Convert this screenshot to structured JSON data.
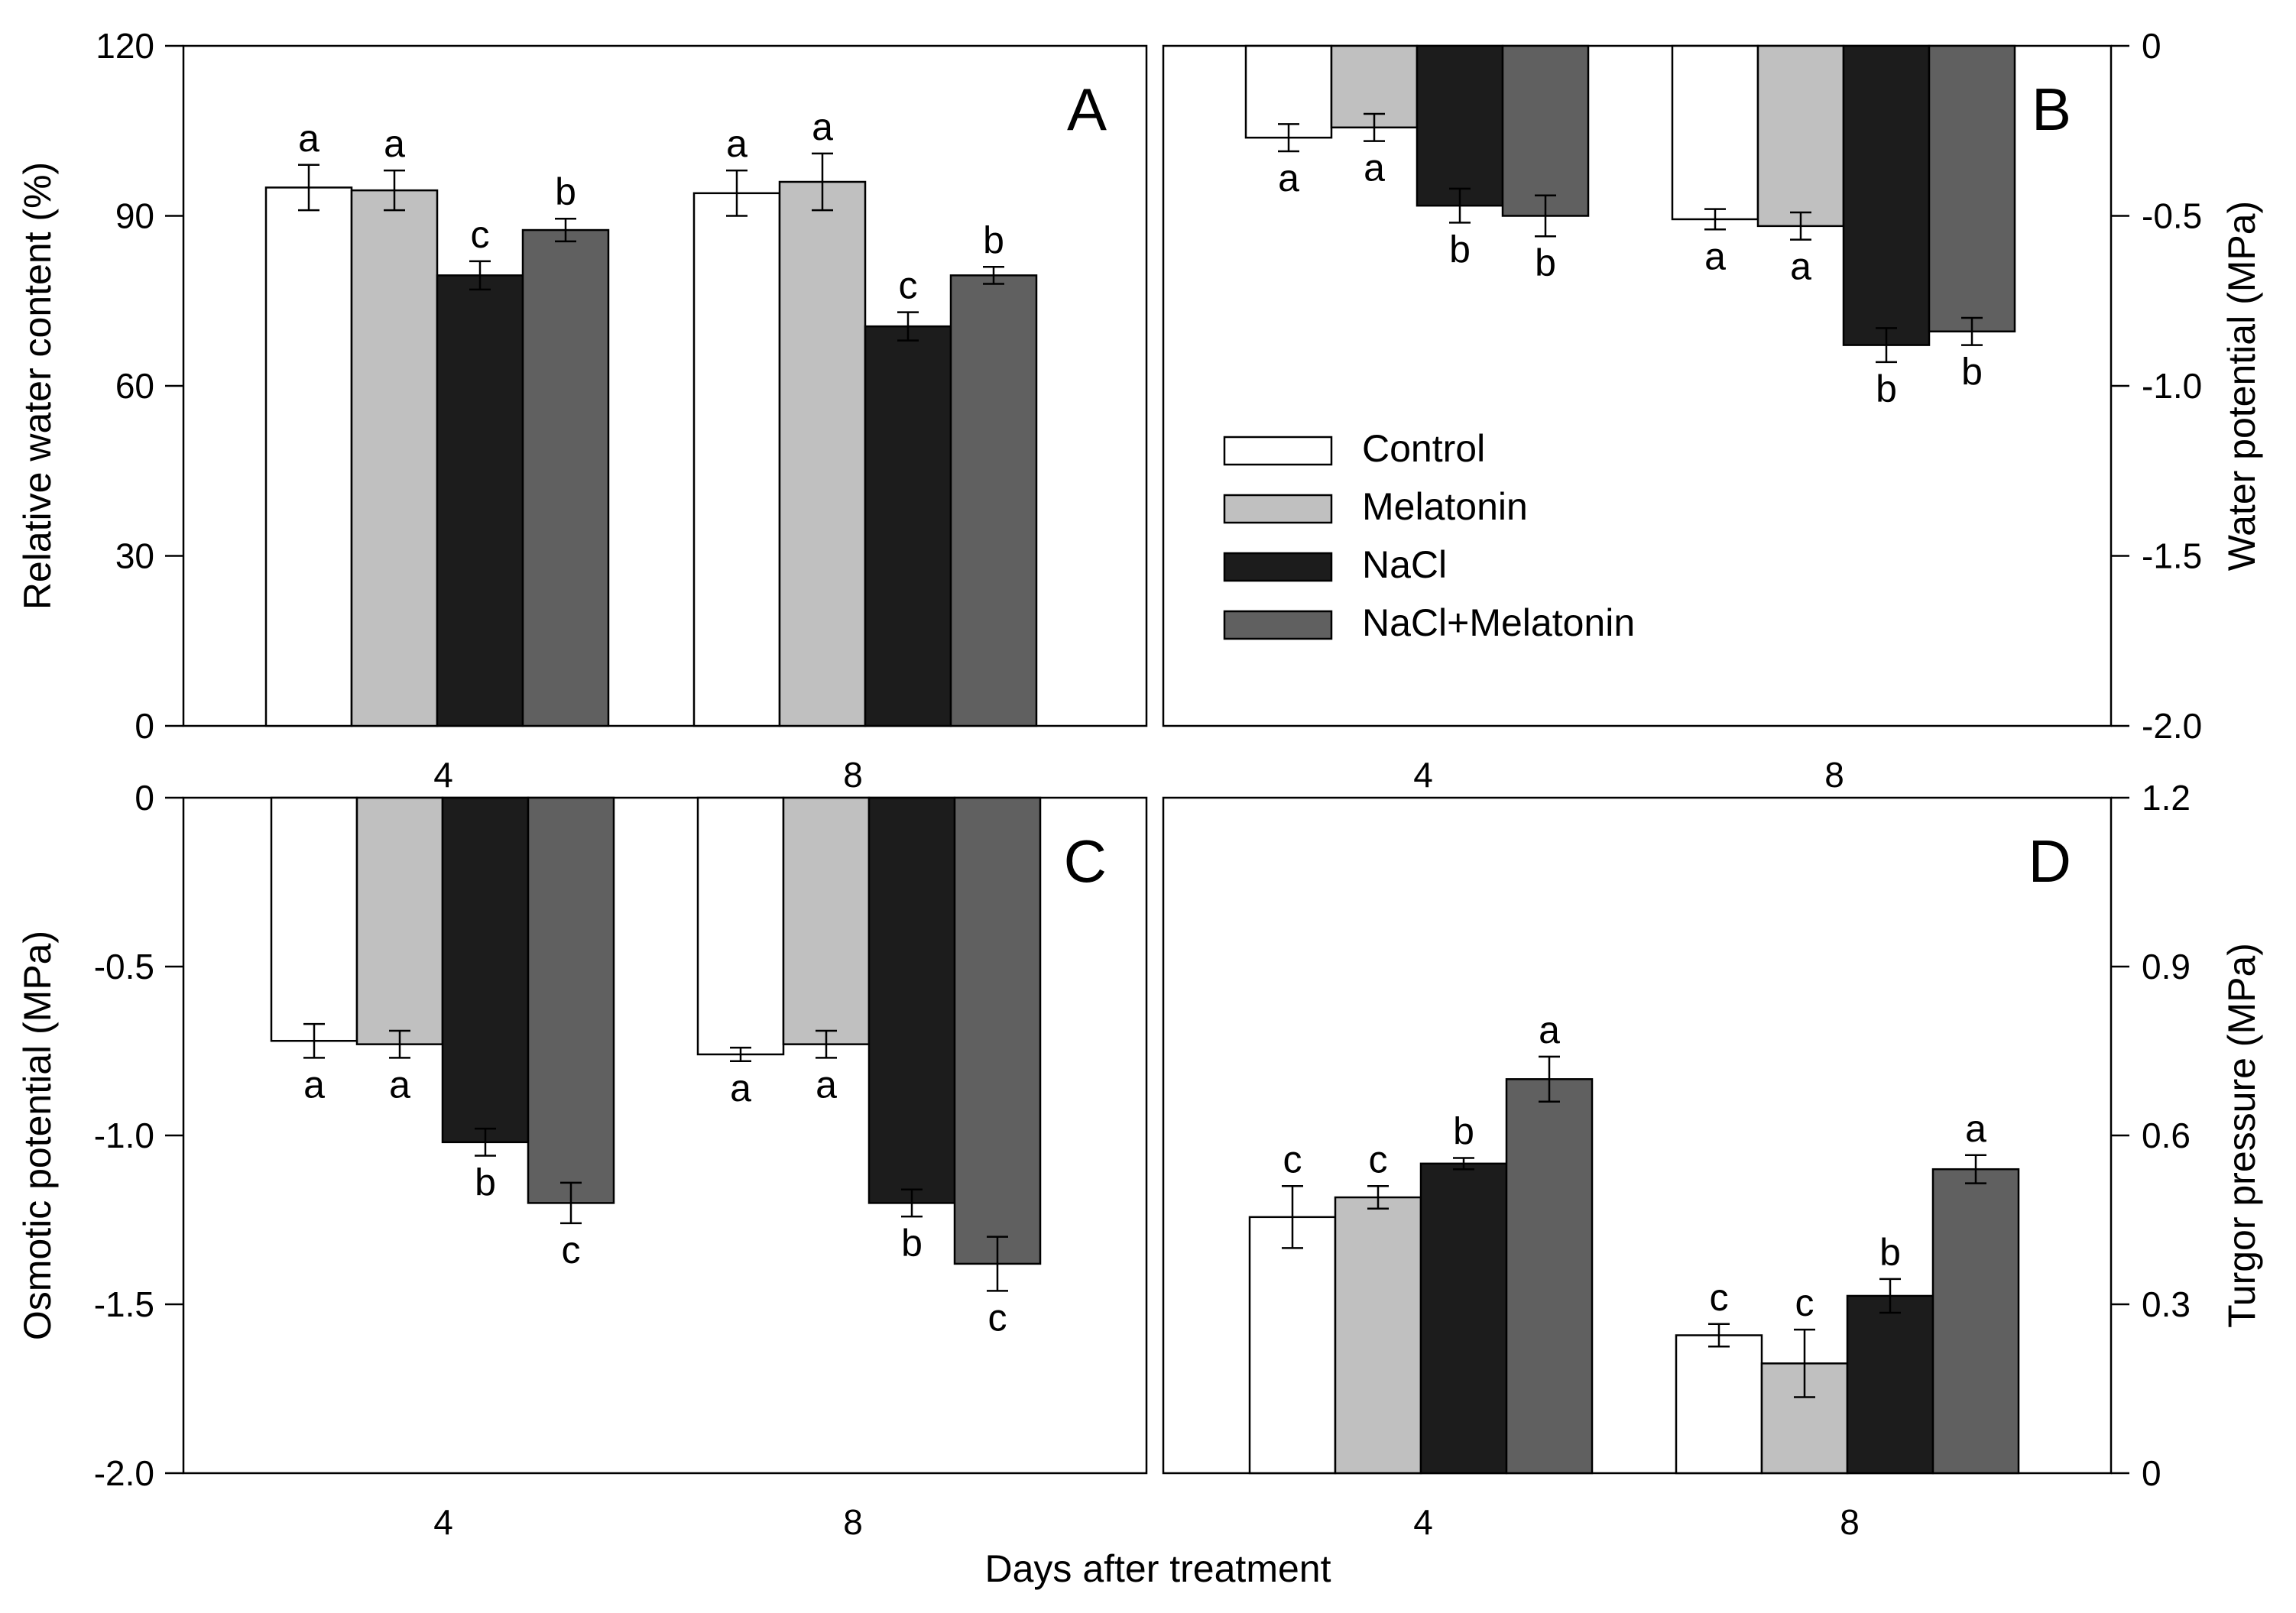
{
  "figure": {
    "xlabel": "Days after treatment"
  },
  "legend": [
    {
      "name": "Control",
      "color": "#ffffff"
    },
    {
      "name": "Melatonin",
      "color": "#c0c0c0"
    },
    {
      "name": "NaCl",
      "color": "#1c1c1c"
    },
    {
      "name": "NaCl+Melatonin",
      "color": "#606060"
    }
  ],
  "chart_data": [
    {
      "type": "bar",
      "panel": "A",
      "categories": [
        "4",
        "8"
      ],
      "ylabel": "Relative water content (%)",
      "y_axis_side": "left",
      "ylim": [
        0,
        120
      ],
      "yticks": [
        0,
        30,
        60,
        90,
        120
      ],
      "ytick_labels": [
        "0",
        "30",
        "60",
        "90",
        "120"
      ],
      "series": [
        {
          "name": "Control",
          "values": [
            95,
            94
          ],
          "errors": [
            4,
            4
          ],
          "letters": [
            "a",
            "a"
          ]
        },
        {
          "name": "Melatonin",
          "values": [
            94.5,
            96
          ],
          "errors": [
            3.5,
            5
          ],
          "letters": [
            "a",
            "a"
          ]
        },
        {
          "name": "NaCl",
          "values": [
            79.5,
            70.5
          ],
          "errors": [
            2.5,
            2.5
          ],
          "letters": [
            "c",
            "c"
          ]
        },
        {
          "name": "NaCl+Melatonin",
          "values": [
            87.5,
            79.5
          ],
          "errors": [
            2,
            1.5
          ],
          "letters": [
            "b",
            "b"
          ]
        }
      ]
    },
    {
      "type": "bar",
      "panel": "B",
      "categories": [
        "4",
        "8"
      ],
      "ylabel": "Water potential (MPa)",
      "y_axis_side": "right",
      "ylim": [
        -2.0,
        0
      ],
      "yticks": [
        0,
        -0.5,
        -1.0,
        -1.5,
        -2.0
      ],
      "ytick_labels": [
        "0",
        "-0.5",
        "-1.0",
        "-1.5",
        "-2.0"
      ],
      "series": [
        {
          "name": "Control",
          "values": [
            -0.27,
            -0.51
          ],
          "errors": [
            0.04,
            0.03
          ],
          "letters": [
            "a",
            "a"
          ]
        },
        {
          "name": "Melatonin",
          "values": [
            -0.24,
            -0.53
          ],
          "errors": [
            0.04,
            0.04
          ],
          "letters": [
            "a",
            "a"
          ]
        },
        {
          "name": "NaCl",
          "values": [
            -0.47,
            -0.88
          ],
          "errors": [
            0.05,
            0.05
          ],
          "letters": [
            "b",
            "b"
          ]
        },
        {
          "name": "NaCl+Melatonin",
          "values": [
            -0.5,
            -0.84
          ],
          "errors": [
            0.06,
            0.04
          ],
          "letters": [
            "b",
            "b"
          ]
        }
      ]
    },
    {
      "type": "bar",
      "panel": "C",
      "categories": [
        "4",
        "8"
      ],
      "ylabel": "Osmotic potential (MPa)",
      "y_axis_side": "left",
      "ylim": [
        -2.0,
        0
      ],
      "yticks": [
        0,
        -0.5,
        -1.0,
        -1.5,
        -2.0
      ],
      "ytick_labels": [
        "0",
        "-0.5",
        "-1.0",
        "-1.5",
        "-2.0"
      ],
      "series": [
        {
          "name": "Control",
          "values": [
            -0.72,
            -0.76
          ],
          "errors": [
            0.05,
            0.02
          ],
          "letters": [
            "a",
            "a"
          ]
        },
        {
          "name": "Melatonin",
          "values": [
            -0.73,
            -0.73
          ],
          "errors": [
            0.04,
            0.04
          ],
          "letters": [
            "a",
            "a"
          ]
        },
        {
          "name": "NaCl",
          "values": [
            -1.02,
            -1.2
          ],
          "errors": [
            0.04,
            0.04
          ],
          "letters": [
            "b",
            "b"
          ]
        },
        {
          "name": "NaCl+Melatonin",
          "values": [
            -1.2,
            -1.38
          ],
          "errors": [
            0.06,
            0.08
          ],
          "letters": [
            "c",
            "c"
          ]
        }
      ]
    },
    {
      "type": "bar",
      "panel": "D",
      "categories": [
        "4",
        "8"
      ],
      "ylabel": "Turgor pressure (MPa)",
      "y_axis_side": "right",
      "ylim": [
        0,
        1.2
      ],
      "yticks": [
        0,
        0.3,
        0.6,
        0.9,
        1.2
      ],
      "ytick_labels": [
        "0",
        "0.3",
        "0.6",
        "0.9",
        "1.2"
      ],
      "series": [
        {
          "name": "Control",
          "values": [
            0.455,
            0.245
          ],
          "errors": [
            0.055,
            0.02
          ],
          "letters": [
            "c",
            "c"
          ]
        },
        {
          "name": "Melatonin",
          "values": [
            0.49,
            0.195
          ],
          "errors": [
            0.02,
            0.06
          ],
          "letters": [
            "c",
            "c"
          ]
        },
        {
          "name": "NaCl",
          "values": [
            0.55,
            0.315
          ],
          "errors": [
            0.01,
            0.03
          ],
          "letters": [
            "b",
            "b"
          ]
        },
        {
          "name": "NaCl+Melatonin",
          "values": [
            0.7,
            0.54
          ],
          "errors": [
            0.04,
            0.025
          ],
          "letters": [
            "a",
            "a"
          ]
        }
      ]
    }
  ]
}
